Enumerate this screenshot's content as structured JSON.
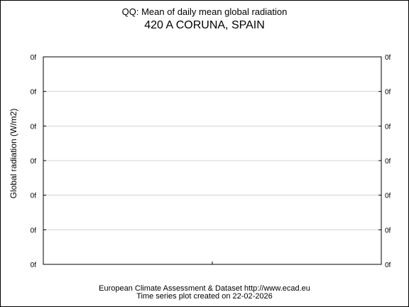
{
  "chart_data": {
    "type": "line",
    "title": "QQ: Mean of daily mean global radiation",
    "subtitle": "420 A CORUNA, SPAIN",
    "xlabel": "",
    "ylabel": "Global radiation (W/m2)",
    "y_tick_labels": [
      "0f",
      "0f",
      "0f",
      "0f",
      "0f",
      "0f",
      "0f"
    ],
    "grid": true,
    "series": []
  },
  "footer": {
    "line1": "European Climate Assessment & Dataset  http://www.ecad.eu",
    "line2": "Time series plot created on 22-02-2026"
  },
  "colors": {
    "frame": "#000000",
    "grid": "#d3d3d3",
    "background": "#ffffff"
  }
}
